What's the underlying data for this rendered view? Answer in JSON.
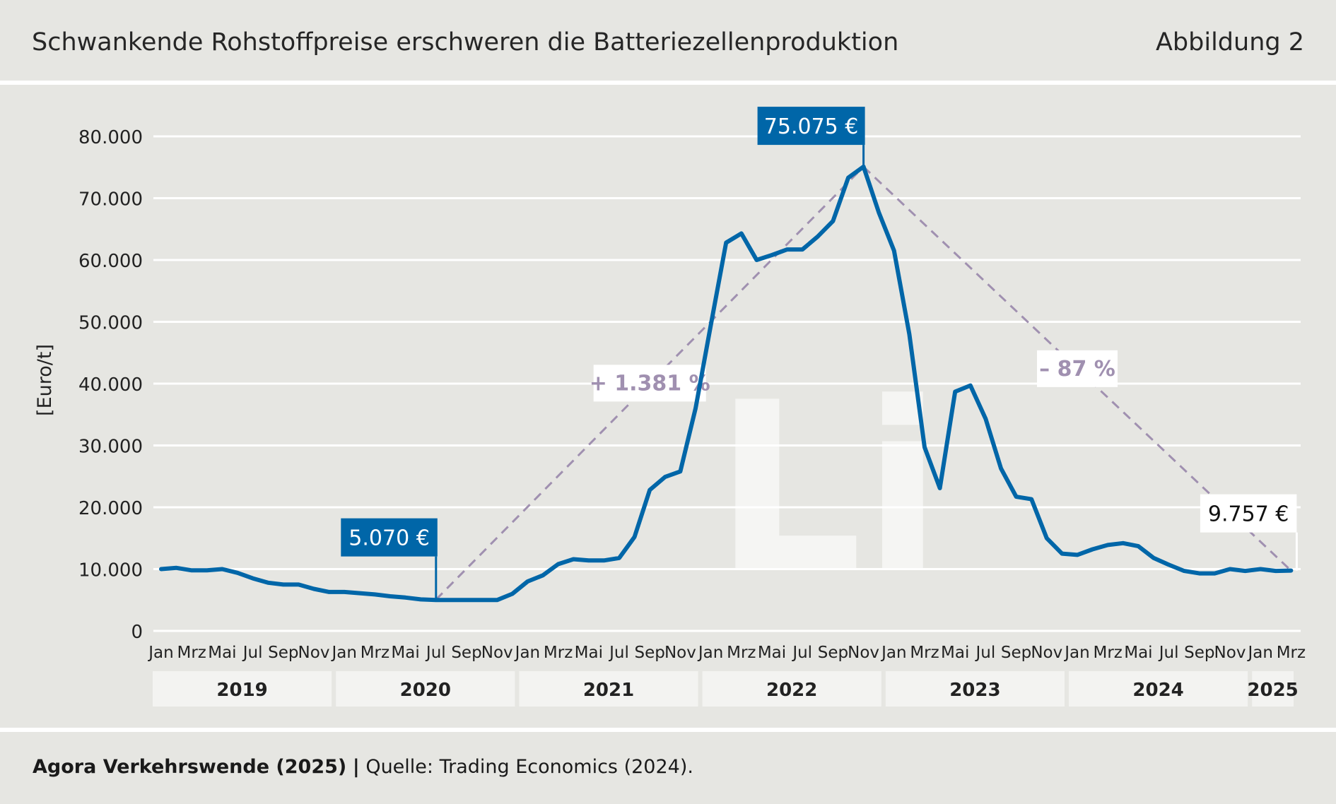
{
  "header": {
    "title": "Schwankende Rohstoffpreise erschweren die Batteriezellenproduktion",
    "figure_label": "Abbildung 2"
  },
  "footer": {
    "author": "Agora Verkehrswende (2025)",
    "separator": "|",
    "source": "Quelle: Trading Economics (2024)."
  },
  "colors": {
    "series": "#0066a8",
    "trend": "#a090b0",
    "grid": "#ffffff",
    "background": "#e6e6e2",
    "year_band": "#f3f3f1"
  },
  "watermark": "Li",
  "chart_data": {
    "type": "line",
    "ylabel": "[Euro/t]",
    "ylim": [
      0,
      80000
    ],
    "yticks": [
      0,
      10000,
      20000,
      30000,
      40000,
      50000,
      60000,
      70000,
      80000
    ],
    "ytick_labels": [
      "0",
      "10.000",
      "20.000",
      "30.000",
      "40.000",
      "50.000",
      "60.000",
      "70.000",
      "80.000"
    ],
    "grid": true,
    "x_tick_labels": [
      "Jan",
      "Mrz",
      "Mai",
      "Jul",
      "Sep",
      "Nov",
      "Jan",
      "Mrz",
      "Mai",
      "Jul",
      "Sep",
      "Nov",
      "Jan",
      "Mrz",
      "Mai",
      "Jul",
      "Sep",
      "Nov",
      "Jan",
      "Mrz",
      "Mai",
      "Jul",
      "Sep",
      "Nov",
      "Jan",
      "Mrz",
      "Mai",
      "Jul",
      "Sep",
      "Nov",
      "Jan",
      "Mrz",
      "Mai",
      "Jul",
      "Sep",
      "Nov",
      "Jan",
      "Mrz"
    ],
    "years": [
      {
        "label": "2019",
        "months": 12
      },
      {
        "label": "2020",
        "months": 12
      },
      {
        "label": "2021",
        "months": 12
      },
      {
        "label": "2022",
        "months": 12
      },
      {
        "label": "2023",
        "months": 12
      },
      {
        "label": "2024",
        "months": 12
      },
      {
        "label": "2025",
        "months": 3
      }
    ],
    "series": [
      {
        "values": [
          10000,
          10200,
          9800,
          9800,
          10000,
          9400,
          8500,
          7800,
          7500,
          7500,
          6800,
          6300,
          6300,
          6100,
          5900,
          5600,
          5400,
          5100,
          5000,
          5000,
          5000,
          5000,
          5000,
          6000,
          8000,
          9000,
          10800,
          11600,
          11400,
          11400,
          11800,
          15200,
          22800,
          24900,
          25800,
          36000,
          49500,
          62800,
          64300,
          60000,
          60800,
          61700,
          61700,
          63800,
          66300,
          73300,
          75100,
          67700,
          61500,
          48000,
          29700,
          23100,
          38700,
          39700,
          34300,
          26300,
          21700,
          21300,
          15000,
          12500,
          12300,
          13200,
          13900,
          14200,
          13700,
          11800,
          10700,
          9700,
          9300,
          9300,
          10000,
          9700,
          10000,
          9700,
          9757
        ]
      }
    ],
    "annotations": [
      {
        "label": "5.070 €",
        "value": 5070,
        "month_index": 18,
        "style": "blue-box"
      },
      {
        "label": "75.075 €",
        "value": 75075,
        "month_index": 46,
        "style": "blue-box"
      },
      {
        "label": "9.757 €",
        "value": 9757,
        "month_index": 74,
        "style": "white-box"
      }
    ],
    "trend_lines": [
      {
        "from_month": 18,
        "from_value": 5070,
        "to_month": 46,
        "to_value": 75075,
        "label": "+ 1.381 %"
      },
      {
        "from_month": 46,
        "from_value": 75075,
        "to_month": 74,
        "to_value": 9757,
        "label": "– 87 %"
      }
    ]
  }
}
